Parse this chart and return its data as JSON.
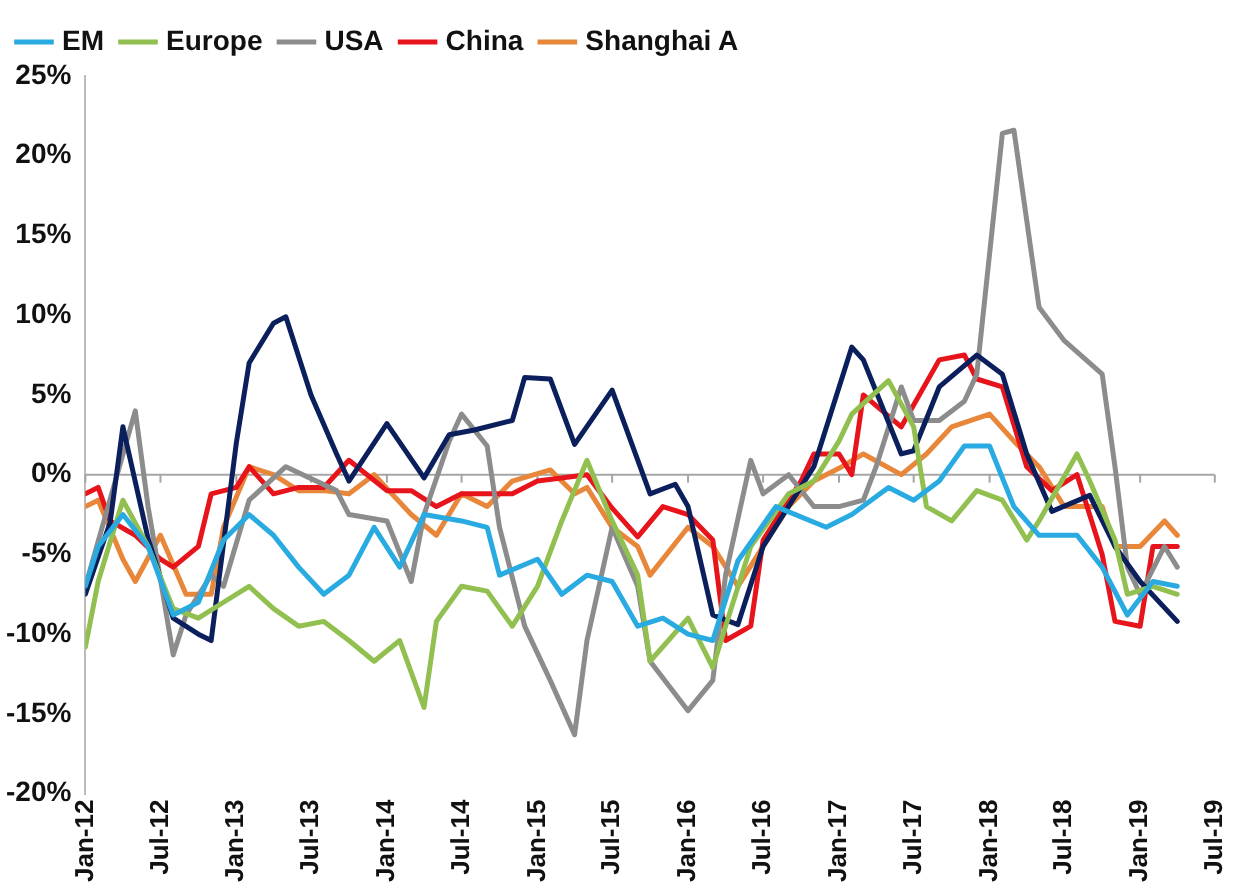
{
  "chart_data": {
    "type": "line",
    "legend": "top",
    "grid": false,
    "marker": "none",
    "line_style": "solid",
    "xlim": [
      "2012-01",
      "2019-07"
    ],
    "xticks": [
      {
        "value": "2012-01",
        "label": "Jan-12"
      },
      {
        "value": "2012-07",
        "label": "Jul-12"
      },
      {
        "value": "2013-01",
        "label": "Jan-13"
      },
      {
        "value": "2013-07",
        "label": "Jul-13"
      },
      {
        "value": "2014-01",
        "label": "Jan-14"
      },
      {
        "value": "2014-07",
        "label": "Jul-14"
      },
      {
        "value": "2015-01",
        "label": "Jan-15"
      },
      {
        "value": "2015-07",
        "label": "Jul-15"
      },
      {
        "value": "2016-01",
        "label": "Jan-16"
      },
      {
        "value": "2016-07",
        "label": "Jul-16"
      },
      {
        "value": "2017-01",
        "label": "Jan-17"
      },
      {
        "value": "2017-07",
        "label": "Jul-17"
      },
      {
        "value": "2018-01",
        "label": "Jan-18"
      },
      {
        "value": "2018-07",
        "label": "Jul-18"
      },
      {
        "value": "2019-01",
        "label": "Jan-19"
      },
      {
        "value": "2019-07",
        "label": "Jul-19"
      }
    ],
    "ylim": [
      -20,
      25
    ],
    "yticks": [
      {
        "value": -20,
        "label": "-20%"
      },
      {
        "value": -15,
        "label": "-15%"
      },
      {
        "value": -10,
        "label": "-10%"
      },
      {
        "value": -5,
        "label": "-5%"
      },
      {
        "value": 0,
        "label": "0%"
      },
      {
        "value": 5,
        "label": "5%"
      },
      {
        "value": 10,
        "label": "10%"
      },
      {
        "value": 15,
        "label": "15%"
      },
      {
        "value": 20,
        "label": "20%"
      },
      {
        "value": 25,
        "label": "25%"
      }
    ],
    "ref_lines": [
      {
        "axis": "y",
        "value": 0,
        "color": "#a6a6a6"
      }
    ],
    "series": [
      {
        "name": "EM",
        "color": "#29abe2",
        "x": [
          "2012-01",
          "2012-02",
          "2012-04",
          "2012-06",
          "2012-08",
          "2012-10",
          "2012-12",
          "2013-02",
          "2013-04",
          "2013-06",
          "2013-08",
          "2013-10",
          "2013-12",
          "2014-02",
          "2014-04",
          "2014-07",
          "2014-09",
          "2014-10",
          "2015-01",
          "2015-03",
          "2015-05",
          "2015-07",
          "2015-09",
          "2015-11",
          "2016-01",
          "2016-03",
          "2016-05",
          "2016-08",
          "2016-12",
          "2017-02",
          "2017-05",
          "2017-07",
          "2017-09",
          "2017-11",
          "2018-01",
          "2018-03",
          "2018-05",
          "2018-08",
          "2018-10",
          "2018-12",
          "2019-02",
          "2019-04"
        ],
        "values": [
          -7,
          -4.5,
          -2.5,
          -4.5,
          -8.8,
          -8,
          -4.1,
          -2.5,
          -3.8,
          -5.8,
          -7.5,
          -6.3,
          -3.3,
          -5.8,
          -2.5,
          -2.9,
          -3.3,
          -6.3,
          -5.3,
          -7.5,
          -6.3,
          -6.7,
          -9.5,
          -9,
          -10,
          -10.4,
          -5.4,
          -2,
          -3.3,
          -2.5,
          -0.8,
          -1.6,
          -0.4,
          1.8,
          1.8,
          -2,
          -3.8,
          -3.8,
          -5.8,
          -8.8,
          -6.7,
          -7
        ]
      },
      {
        "name": "Europe",
        "color": "#92c050",
        "x": [
          "2012-01",
          "2012-02",
          "2012-04",
          "2012-06",
          "2012-08",
          "2012-10",
          "2012-12",
          "2013-02",
          "2013-04",
          "2013-06",
          "2013-08",
          "2013-10",
          "2013-12",
          "2014-02",
          "2014-04",
          "2014-05",
          "2014-07",
          "2014-09",
          "2014-11",
          "2015-01",
          "2015-03",
          "2015-05",
          "2015-07",
          "2015-09",
          "2015-10",
          "2016-01",
          "2016-03",
          "2016-04",
          "2016-06",
          "2016-09",
          "2016-11",
          "2017-01",
          "2017-02",
          "2017-05",
          "2017-07",
          "2017-08",
          "2017-10",
          "2017-12",
          "2018-02",
          "2018-04",
          "2018-05",
          "2018-08",
          "2018-09",
          "2018-11",
          "2018-12",
          "2019-02",
          "2019-04"
        ],
        "values": [
          -10.8,
          -6.7,
          -1.6,
          -4.5,
          -8.4,
          -9,
          -8,
          -7,
          -8.4,
          -9.5,
          -9.2,
          -10.4,
          -11.7,
          -10.4,
          -14.6,
          -9.2,
          -7,
          -7.3,
          -9.5,
          -7,
          -2.9,
          0.9,
          -2.9,
          -6.3,
          -11.7,
          -9,
          -12.1,
          -9.5,
          -4.5,
          -1.2,
          -0.4,
          2.1,
          3.8,
          5.9,
          3,
          -2,
          -2.9,
          -1,
          -1.6,
          -4.1,
          -2.9,
          1.3,
          -0.4,
          -4.1,
          -7.5,
          -7,
          -7.5
        ]
      },
      {
        "color": "#0a1f5c",
        "x": [
          "2012-01",
          "2012-03",
          "2012-04",
          "2012-06",
          "2012-08",
          "2012-10",
          "2012-11",
          "2013-01",
          "2013-02",
          "2013-04",
          "2013-05",
          "2013-07",
          "2013-09",
          "2013-10",
          "2014-01",
          "2014-04",
          "2014-06",
          "2014-08",
          "2014-11",
          "2014-12",
          "2015-02",
          "2015-04",
          "2015-07",
          "2015-10",
          "2015-12",
          "2016-01",
          "2016-03",
          "2016-05",
          "2016-07",
          "2016-11",
          "2017-02",
          "2017-03",
          "2017-06",
          "2017-07",
          "2017-09",
          "2017-12",
          "2018-02",
          "2018-04",
          "2018-06",
          "2018-09",
          "2018-11",
          "2019-01",
          "2019-04"
        ],
        "values": [
          -7.5,
          -3,
          3,
          -4,
          -9,
          -10,
          -10.4,
          2,
          7,
          9.5,
          9.9,
          5,
          1.3,
          -0.4,
          3.2,
          -0.2,
          2.5,
          2.8,
          3.4,
          6.1,
          6,
          1.9,
          5.3,
          -1.2,
          -0.6,
          -2,
          -8.8,
          -9.4,
          -4.5,
          0.5,
          8,
          7.2,
          1.3,
          1.5,
          5.5,
          7.5,
          6.3,
          1.3,
          -2.3,
          -1.3,
          -4.5,
          -6.7,
          -9.2
        ]
      },
      {
        "name": "USA",
        "color": "#8c8c8c",
        "x": [
          "2012-01",
          "2012-05",
          "2012-06",
          "2012-08",
          "2012-09",
          "2012-11",
          "2012-12",
          "2013-02",
          "2013-05",
          "2013-09",
          "2013-10",
          "2014-01",
          "2014-03",
          "2014-04",
          "2014-06",
          "2014-07",
          "2014-09",
          "2014-10",
          "2014-12",
          "2015-02",
          "2015-04",
          "2015-05",
          "2015-07",
          "2015-09",
          "2015-10",
          "2016-01",
          "2016-03",
          "2016-04",
          "2016-06",
          "2016-07",
          "2016-09",
          "2016-11",
          "2017-01",
          "2017-03",
          "2017-04",
          "2017-06",
          "2017-07",
          "2017-09",
          "2017-11",
          "2017-12",
          "2018-02",
          "2018-03",
          "2018-05",
          "2018-07",
          "2018-10",
          "2018-11",
          "2018-12",
          "2019-01",
          "2019-03",
          "2019-04"
        ],
        "values": [
          -7,
          4,
          -2,
          -11.3,
          -8.8,
          -6.3,
          -7,
          -1.6,
          0.5,
          -1,
          -2.5,
          -2.9,
          -6.7,
          -2.5,
          2.1,
          3.8,
          1.8,
          -3.3,
          -9.5,
          -12.9,
          -16.3,
          -10.4,
          -3.3,
          -7,
          -11.7,
          -14.8,
          -12.9,
          -6.3,
          0.9,
          -1.2,
          0,
          -2,
          -2,
          -1.6,
          0.5,
          5.5,
          3.4,
          3.4,
          4.6,
          6.3,
          21.4,
          21.6,
          10.5,
          8.4,
          6.3,
          0.5,
          -5.8,
          -7.5,
          -4.5,
          -5.8
        ]
      },
      {
        "name": "China",
        "color": "#e8141c",
        "x": [
          "2012-01",
          "2012-02",
          "2012-03",
          "2012-05",
          "2012-07",
          "2012-08",
          "2012-10",
          "2012-11",
          "2013-01",
          "2013-02",
          "2013-04",
          "2013-06",
          "2013-08",
          "2013-10",
          "2014-01",
          "2014-03",
          "2014-05",
          "2014-07",
          "2014-09",
          "2014-11",
          "2015-01",
          "2015-05",
          "2015-07",
          "2015-09",
          "2015-11",
          "2016-01",
          "2016-03",
          "2016-04",
          "2016-06",
          "2016-07",
          "2016-10",
          "2016-11",
          "2017-01",
          "2017-02",
          "2017-03",
          "2017-06",
          "2017-09",
          "2017-11",
          "2017-12",
          "2018-02",
          "2018-04",
          "2018-06",
          "2018-08",
          "2018-10",
          "2018-11",
          "2019-01",
          "2019-02",
          "2019-04"
        ],
        "values": [
          -1.2,
          -0.8,
          -2.9,
          -3.8,
          -5.3,
          -5.8,
          -4.5,
          -1.2,
          -0.8,
          0.5,
          -1.2,
          -0.8,
          -0.8,
          0.9,
          -1,
          -1,
          -2,
          -1.2,
          -1.2,
          -1.2,
          -0.4,
          0,
          -2.1,
          -3.9,
          -2,
          -2.5,
          -4.1,
          -10.4,
          -9.5,
          -4.1,
          -0.4,
          1.3,
          1.3,
          0,
          5,
          3,
          7.2,
          7.5,
          6,
          5.5,
          0.5,
          -1,
          0,
          -5,
          -9.2,
          -9.5,
          -4.5,
          -4.5
        ]
      },
      {
        "name": "Shanghai A",
        "color": "#e8873a",
        "x": [
          "2012-01",
          "2012-02",
          "2012-04",
          "2012-05",
          "2012-07",
          "2012-09",
          "2012-11",
          "2012-12",
          "2013-02",
          "2013-04",
          "2013-06",
          "2013-08",
          "2013-10",
          "2013-12",
          "2014-03",
          "2014-05",
          "2014-07",
          "2014-09",
          "2014-11",
          "2015-02",
          "2015-04",
          "2015-05",
          "2015-07",
          "2015-09",
          "2015-10",
          "2016-01",
          "2016-03",
          "2016-05",
          "2016-07",
          "2016-09",
          "2016-11",
          "2017-01",
          "2017-03",
          "2017-06",
          "2017-08",
          "2017-10",
          "2018-01",
          "2018-03",
          "2018-05",
          "2018-07",
          "2018-10",
          "2018-11",
          "2019-01",
          "2019-03",
          "2019-04"
        ],
        "values": [
          -2,
          -1.6,
          -5.3,
          -6.7,
          -3.8,
          -7.5,
          -7.5,
          -3.3,
          0.5,
          0,
          -1,
          -1,
          -1.2,
          0,
          -2.5,
          -3.8,
          -1.2,
          -2,
          -0.4,
          0.3,
          -1.2,
          -0.8,
          -3.3,
          -4.5,
          -6.3,
          -3.3,
          -4.5,
          -7,
          -4.5,
          -2,
          -0.4,
          0.4,
          1.3,
          0,
          1.3,
          3,
          3.8,
          2.1,
          0.5,
          -2,
          -2,
          -4.5,
          -4.5,
          -2.9,
          -3.8
        ]
      }
    ]
  }
}
